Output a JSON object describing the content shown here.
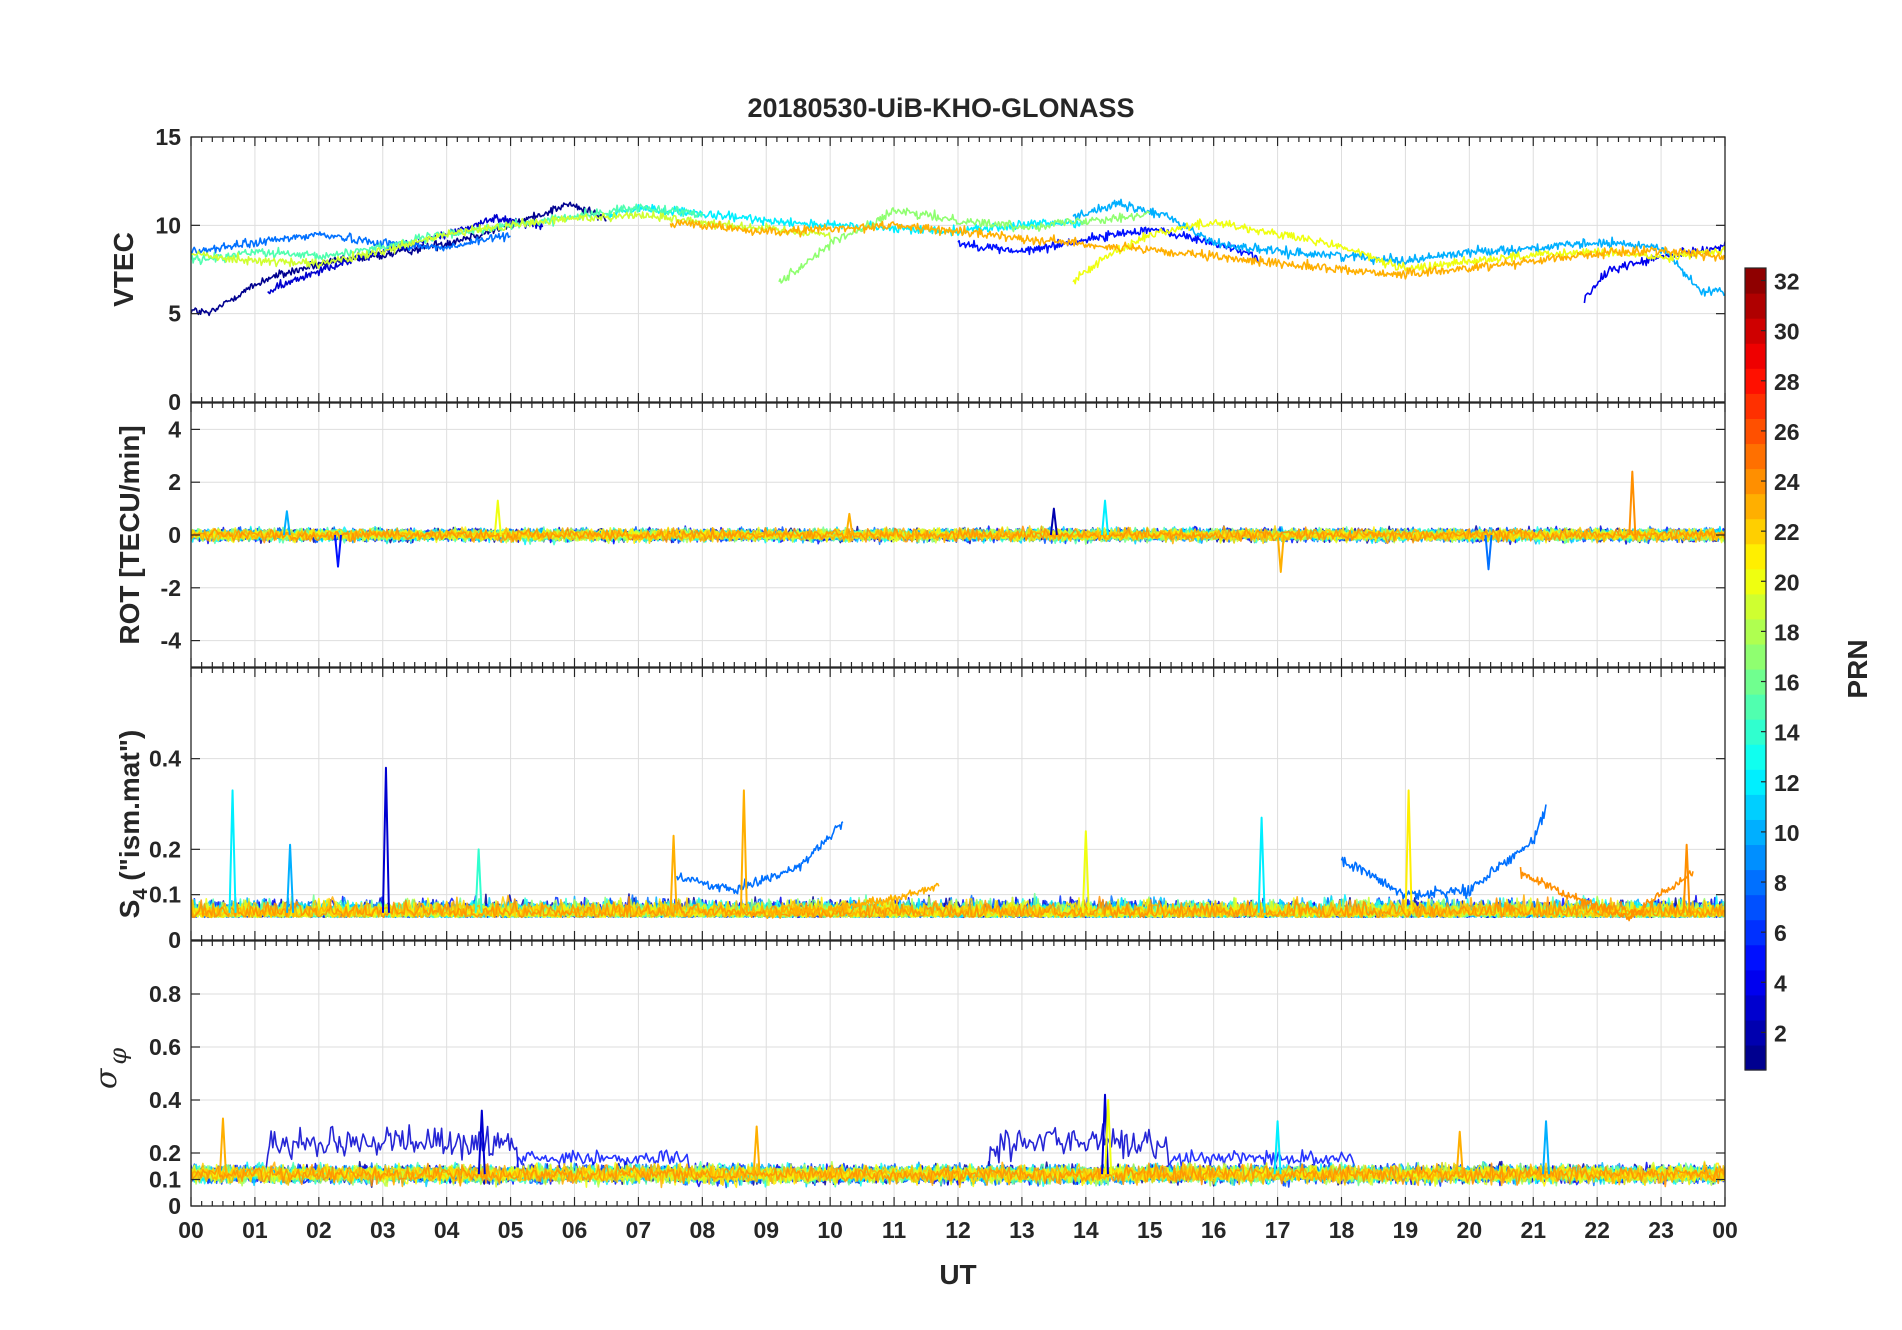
{
  "chart_data": {
    "type": "line",
    "title": "20180530-UiB-KHO-GLONASS",
    "xlabel": "UT",
    "x_tick_labels": [
      "00",
      "01",
      "02",
      "03",
      "04",
      "05",
      "06",
      "07",
      "08",
      "09",
      "10",
      "11",
      "12",
      "13",
      "14",
      "15",
      "16",
      "17",
      "18",
      "19",
      "20",
      "21",
      "22",
      "23",
      "00"
    ],
    "xlim": [
      0,
      24
    ],
    "grid": true,
    "panels": [
      {
        "name": "vtec",
        "ylabel": "VTEC",
        "ylim": [
          0,
          15
        ],
        "y_ticks": [
          0,
          5,
          10,
          15
        ],
        "y_tick_labels": [
          "0",
          "5",
          "10",
          "15"
        ],
        "description_series": [
          {
            "prn": 1,
            "x": [
              0,
              0.3,
              0.7,
              1.2,
              2,
              3,
              4,
              5,
              5.9,
              6.5
            ],
            "values": [
              5.2,
              5,
              6,
              7,
              7.8,
              8.3,
              9,
              10,
              11.2,
              10.4
            ]
          },
          {
            "prn": 3,
            "x": [
              1.2,
              2,
              3,
              4,
              4.8,
              5.5
            ],
            "values": [
              6.2,
              7.5,
              8.5,
              9.5,
              10.4,
              10
            ]
          },
          {
            "prn": 5,
            "x": [
              12,
              13,
              14,
              15,
              16,
              16.7
            ],
            "values": [
              9,
              8.5,
              9.2,
              9.8,
              9,
              8.2
            ]
          },
          {
            "prn": 4,
            "x": [
              21.8,
              22.2,
              23,
              24
            ],
            "values": [
              5.8,
              7.5,
              8.2,
              8.8
            ]
          },
          {
            "prn": 8,
            "x": [
              0,
              1,
              2,
              3,
              4,
              5
            ],
            "values": [
              8.5,
              9,
              9.5,
              9,
              8.7,
              9.5
            ]
          },
          {
            "prn": 10,
            "x": [
              13.8,
              14.5,
              15.3,
              16,
              17,
              18,
              19,
              20,
              21,
              22,
              23,
              23.6,
              24
            ],
            "values": [
              10.5,
              11.2,
              10.5,
              9,
              8.5,
              8.3,
              8,
              8.5,
              8.7,
              9,
              8.8,
              6.3,
              6.2
            ]
          },
          {
            "prn": 12,
            "x": [
              6.5,
              7,
              8,
              9,
              10,
              11,
              12,
              13,
              14
            ],
            "values": [
              10.5,
              11,
              10.6,
              10.3,
              10,
              9.8,
              9.7,
              10,
              10.2
            ]
          },
          {
            "prn": 15,
            "x": [
              0,
              1,
              2,
              3,
              4,
              5,
              6,
              7,
              8
            ],
            "values": [
              8,
              8.5,
              8.2,
              8.8,
              9.5,
              10,
              10.5,
              11,
              10.7
            ]
          },
          {
            "prn": 17,
            "x": [
              9.2,
              9.6,
              10,
              10.5,
              11,
              12,
              13,
              14,
              15
            ],
            "values": [
              6.8,
              7.8,
              9,
              9.8,
              10.8,
              10.3,
              9.9,
              10.3,
              10.6
            ]
          },
          {
            "prn": 19,
            "x": [
              0,
              1,
              2,
              3,
              4,
              5,
              6,
              7,
              8,
              9,
              10
            ],
            "values": [
              8.4,
              8,
              7.8,
              8.5,
              9.5,
              10,
              10.4,
              10.6,
              10.2,
              9.8,
              9.5
            ]
          },
          {
            "prn": 20,
            "x": [
              13.8,
              14.3,
              15,
              16,
              17,
              18,
              19,
              20,
              21,
              22,
              23,
              24
            ],
            "values": [
              6.8,
              8.2,
              9.5,
              10.2,
              9.5,
              8.8,
              7.5,
              8,
              8.3,
              8.5,
              8.2,
              8.6
            ]
          },
          {
            "prn": 23,
            "x": [
              7.5,
              8,
              9,
              10,
              11,
              18,
              19,
              20,
              21,
              22,
              23,
              24
            ],
            "values": [
              10.2,
              10,
              9.6,
              9.8,
              10,
              7.5,
              7.2,
              7.6,
              8,
              8.4,
              8.6,
              8.2
            ]
          }
        ]
      },
      {
        "name": "rot",
        "ylabel": "ROT [TECU/min]",
        "ylim": [
          -5,
          5
        ],
        "y_ticks": [
          -4,
          -2,
          0,
          2,
          4
        ],
        "y_tick_labels": [
          "-4",
          "-2",
          "0",
          "2",
          "4"
        ],
        "baseline": 0,
        "noise_amplitude": 0.35,
        "spikes": [
          {
            "x": 4.8,
            "value": 1.3,
            "prn": 20
          },
          {
            "x": 14.3,
            "value": 1.3,
            "prn": 12
          },
          {
            "x": 17.05,
            "value": -1.4,
            "prn": 23
          },
          {
            "x": 20.3,
            "value": -1.3,
            "prn": 8
          },
          {
            "x": 22.55,
            "value": 2.4,
            "prn": 24
          },
          {
            "x": 1.5,
            "value": 0.9,
            "prn": 10
          },
          {
            "x": 2.3,
            "value": -1.2,
            "prn": 5
          },
          {
            "x": 13.5,
            "value": 1.0,
            "prn": 2
          },
          {
            "x": 10.3,
            "value": 0.8,
            "prn": 23
          }
        ]
      },
      {
        "name": "s4",
        "ylabel": "S4 (\"ism.mat\")",
        "ylabel_main": "S",
        "ylabel_sub": "4",
        "ylabel_rest": " (\"ism.mat\")",
        "ylim": [
          0,
          0.6
        ],
        "y_ticks": [
          0,
          0.1,
          0.2,
          0.4
        ],
        "y_tick_labels": [
          "0",
          "0.1",
          "0.2",
          "0.4"
        ],
        "baseline": 0.06,
        "noise_amplitude": 0.05,
        "spikes": [
          {
            "x": 0.65,
            "value": 0.33,
            "prn": 12
          },
          {
            "x": 3.05,
            "value": 0.38,
            "prn": 3
          },
          {
            "x": 8.65,
            "value": 0.33,
            "prn": 23
          },
          {
            "x": 16.75,
            "value": 0.27,
            "prn": 12
          },
          {
            "x": 19.05,
            "value": 0.33,
            "prn": 21
          },
          {
            "x": 14.0,
            "value": 0.24,
            "prn": 20
          },
          {
            "x": 7.55,
            "value": 0.23,
            "prn": 23
          },
          {
            "x": 23.4,
            "value": 0.21,
            "prn": 24
          },
          {
            "x": 1.55,
            "value": 0.21,
            "prn": 10
          },
          {
            "x": 4.5,
            "value": 0.2,
            "prn": 14
          }
        ],
        "arcs": [
          {
            "prn": 8,
            "x": [
              7.6,
              8.5,
              9.5,
              10.2
            ],
            "values": [
              0.14,
              0.11,
              0.16,
              0.26
            ]
          },
          {
            "prn": 8,
            "x": [
              18,
              19,
              20,
              21,
              21.2
            ],
            "values": [
              0.18,
              0.1,
              0.11,
              0.22,
              0.29
            ]
          },
          {
            "prn": 23,
            "x": [
              9.0,
              10,
              11,
              11.7
            ],
            "values": [
              0.06,
              0.07,
              0.09,
              0.12
            ]
          },
          {
            "prn": 24,
            "x": [
              20.8,
              21.5,
              22.5,
              23.5
            ],
            "values": [
              0.15,
              0.1,
              0.05,
              0.15
            ]
          }
        ]
      },
      {
        "name": "sigma_phi",
        "ylabel": "σφ",
        "ylabel_main": "σ",
        "ylabel_sub": "φ",
        "ylim": [
          0,
          1
        ],
        "y_ticks": [
          0,
          0.1,
          0.2,
          0.4,
          0.6,
          0.8
        ],
        "y_tick_labels": [
          "0",
          "0.1",
          "0.2",
          "0.4",
          "0.6",
          "0.8"
        ],
        "baseline": 0.12,
        "noise_amplitude": 0.05,
        "bumps": [
          {
            "prn": 3,
            "x_start": 1.2,
            "x_end": 5.1,
            "level": 0.24,
            "amp": 0.08
          },
          {
            "prn": 3,
            "x_start": 12.5,
            "x_end": 15.3,
            "level": 0.24,
            "amp": 0.08
          },
          {
            "prn": 5,
            "x_start": 5.1,
            "x_end": 7.8,
            "level": 0.18,
            "amp": 0.04
          },
          {
            "prn": 5,
            "x_start": 15.3,
            "x_end": 18.2,
            "level": 0.18,
            "amp": 0.04
          }
        ],
        "spikes": [
          {
            "x": 14.3,
            "value": 0.42,
            "prn": 3
          },
          {
            "x": 14.35,
            "value": 0.4,
            "prn": 20
          },
          {
            "x": 0.5,
            "value": 0.33,
            "prn": 23
          },
          {
            "x": 17.0,
            "value": 0.32,
            "prn": 12
          },
          {
            "x": 21.2,
            "value": 0.32,
            "prn": 10
          },
          {
            "x": 8.85,
            "value": 0.3,
            "prn": 23
          },
          {
            "x": 19.85,
            "value": 0.28,
            "prn": 23
          },
          {
            "x": 4.55,
            "value": 0.36,
            "prn": 3
          }
        ]
      }
    ],
    "colorbar": {
      "label": "PRN",
      "colormap": "jet",
      "range": [
        1,
        32
      ],
      "ticks": [
        2,
        4,
        6,
        8,
        10,
        12,
        14,
        16,
        18,
        20,
        22,
        24,
        26,
        28,
        30,
        32
      ],
      "tick_labels": [
        "2",
        "4",
        "6",
        "8",
        "10",
        "12",
        "14",
        "16",
        "18",
        "20",
        "22",
        "24",
        "26",
        "28",
        "30",
        "32"
      ]
    },
    "series_prns": [
      1,
      2,
      3,
      4,
      5,
      6,
      7,
      8,
      9,
      10,
      11,
      12,
      13,
      14,
      15,
      16,
      17,
      18,
      19,
      20,
      21,
      22,
      23,
      24
    ]
  }
}
